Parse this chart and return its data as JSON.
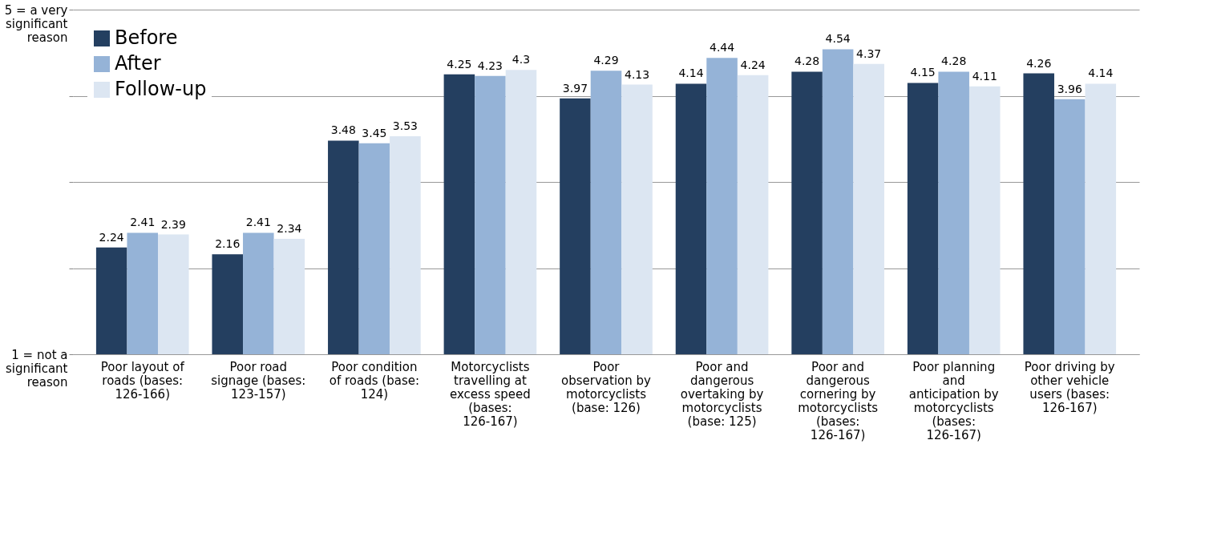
{
  "chart_data": {
    "type": "bar",
    "categories": [
      "Poor layout of roads (bases: 126-166)",
      "Poor road signage (bases: 123-157)",
      "Poor condition of roads (base: 124)",
      "Motorcyclists travelling at excess speed (bases: 126-167)",
      "Poor observation by motorcyclists (base: 126)",
      "Poor and dangerous overtaking by motorcyclists (base: 125)",
      "Poor and dangerous cornering by motorcyclists (bases: 126-167)",
      "Poor planning and anticipation by motorcyclists (bases: 126-167)",
      "Poor driving by other vehicle users (bases: 126-167)"
    ],
    "series": [
      {
        "name": "Before",
        "color": "#243f60",
        "values": [
          2.24,
          2.16,
          3.48,
          4.25,
          3.97,
          4.14,
          4.28,
          4.15,
          4.26
        ]
      },
      {
        "name": "After",
        "color": "#95b3d7",
        "values": [
          2.41,
          2.41,
          3.45,
          4.23,
          4.29,
          4.44,
          4.54,
          4.28,
          3.96
        ]
      },
      {
        "name": "Follow-up",
        "color": "#dce6f2",
        "values": [
          2.39,
          2.34,
          3.53,
          4.3,
          4.13,
          4.24,
          4.37,
          4.11,
          4.14
        ]
      }
    ],
    "ylim": [
      1,
      5
    ],
    "yticks": [
      {
        "value": 1,
        "label": "1 = not a significant reason"
      },
      {
        "value": 2,
        "label": null
      },
      {
        "value": 3,
        "label": null
      },
      {
        "value": 4,
        "label": null
      },
      {
        "value": 5,
        "label": "5 = a very significant reason"
      }
    ],
    "grid": "y",
    "legend": "top left",
    "data_labels": true
  }
}
